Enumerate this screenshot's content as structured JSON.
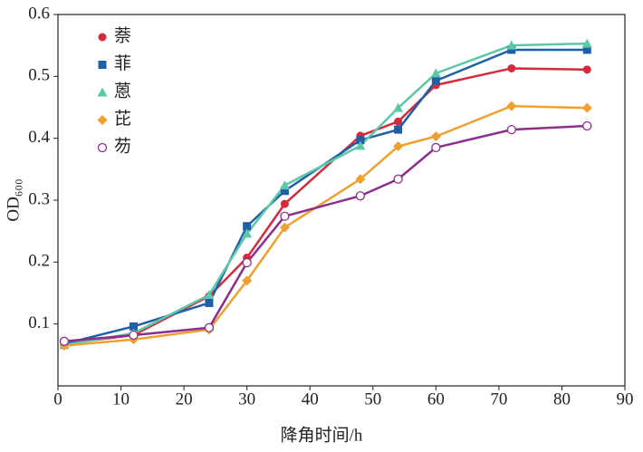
{
  "chart_data": {
    "type": "line",
    "xlabel": "降角时间/h",
    "ylabel": "OD₆₀₀",
    "x": [
      1,
      12,
      24,
      30,
      36,
      48,
      54,
      60,
      72,
      84
    ],
    "series": [
      {
        "name": "萘",
        "color": "#d42a3c",
        "marker": "circle",
        "values": [
          0.068,
          0.082,
          0.145,
          0.207,
          0.294,
          0.404,
          0.427,
          0.486,
          0.513,
          0.511
        ]
      },
      {
        "name": "菲",
        "color": "#1f5fa8",
        "marker": "square",
        "values": [
          0.068,
          0.096,
          0.134,
          0.258,
          0.315,
          0.397,
          0.414,
          0.493,
          0.543,
          0.543
        ]
      },
      {
        "name": "蒽",
        "color": "#5cc8a8",
        "marker": "triangle",
        "values": [
          0.066,
          0.085,
          0.147,
          0.246,
          0.324,
          0.388,
          0.449,
          0.505,
          0.55,
          0.553
        ]
      },
      {
        "name": "芘",
        "color": "#f0a030",
        "marker": "diamond",
        "values": [
          0.065,
          0.075,
          0.091,
          0.17,
          0.256,
          0.334,
          0.387,
          0.403,
          0.452,
          0.449
        ]
      },
      {
        "name": "芴",
        "color": "#8b2f8f",
        "marker": "open-circle",
        "values": [
          0.072,
          0.082,
          0.094,
          0.199,
          0.274,
          0.307,
          0.334,
          0.385,
          0.414,
          0.42
        ]
      }
    ],
    "xlim": [
      0,
      90
    ],
    "xticks": [
      0,
      10,
      20,
      30,
      40,
      50,
      60,
      70,
      80,
      90
    ],
    "ylim": [
      0,
      0.6
    ],
    "yticks": [
      0.1,
      0.2,
      0.3,
      0.4,
      0.5,
      0.6
    ],
    "legend": "upper-left",
    "grid": false
  }
}
